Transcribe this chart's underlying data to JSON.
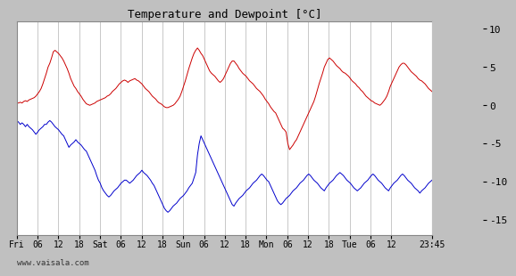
{
  "title": "Temperature and Dewpoint [°C]",
  "ylim": [
    -17,
    11
  ],
  "yticks": [
    -15,
    -10,
    -5,
    0,
    5,
    10
  ],
  "bg_color": "#c0c0c0",
  "plot_bg": "#ffffff",
  "grid_color": "#c8c8c8",
  "temp_color": "#cc0000",
  "dew_color": "#0000cc",
  "x_tick_labels": [
    "Fri",
    "06",
    "12",
    "18",
    "Sat",
    "06",
    "12",
    "18",
    "Sun",
    "06",
    "12",
    "18",
    "Mon",
    "06",
    "12",
    "18",
    "Tue",
    "06",
    "12",
    "23:45"
  ],
  "watermark": "www.vaisala.com",
  "temp_data": [
    0.3,
    0.3,
    0.4,
    0.3,
    0.5,
    0.6,
    0.5,
    0.7,
    0.8,
    0.9,
    1.0,
    1.2,
    1.5,
    1.8,
    2.2,
    2.8,
    3.5,
    4.2,
    5.0,
    5.5,
    6.2,
    7.0,
    7.2,
    7.0,
    6.8,
    6.5,
    6.2,
    5.8,
    5.3,
    4.8,
    4.2,
    3.5,
    3.0,
    2.5,
    2.2,
    1.8,
    1.5,
    1.2,
    0.8,
    0.5,
    0.2,
    0.1,
    0.0,
    0.1,
    0.2,
    0.3,
    0.5,
    0.6,
    0.7,
    0.8,
    0.9,
    1.0,
    1.2,
    1.3,
    1.5,
    1.8,
    2.0,
    2.2,
    2.5,
    2.8,
    3.0,
    3.2,
    3.3,
    3.2,
    3.0,
    3.2,
    3.3,
    3.4,
    3.5,
    3.3,
    3.2,
    3.0,
    2.8,
    2.5,
    2.2,
    2.0,
    1.8,
    1.5,
    1.2,
    1.0,
    0.8,
    0.5,
    0.3,
    0.2,
    0.0,
    -0.2,
    -0.3,
    -0.3,
    -0.2,
    -0.1,
    0.0,
    0.2,
    0.5,
    0.8,
    1.2,
    1.8,
    2.5,
    3.2,
    4.0,
    4.8,
    5.5,
    6.2,
    6.8,
    7.2,
    7.5,
    7.2,
    6.8,
    6.5,
    6.0,
    5.5,
    5.0,
    4.5,
    4.2,
    4.0,
    3.8,
    3.5,
    3.2,
    3.0,
    3.2,
    3.5,
    4.0,
    4.5,
    5.0,
    5.5,
    5.8,
    5.8,
    5.5,
    5.2,
    4.8,
    4.5,
    4.2,
    4.0,
    3.8,
    3.5,
    3.2,
    3.0,
    2.8,
    2.5,
    2.2,
    2.0,
    1.8,
    1.5,
    1.2,
    0.8,
    0.5,
    0.2,
    -0.2,
    -0.5,
    -0.8,
    -1.0,
    -1.5,
    -2.0,
    -2.5,
    -3.0,
    -3.2,
    -3.5,
    -5.0,
    -5.8,
    -5.5,
    -5.2,
    -4.8,
    -4.5,
    -4.0,
    -3.5,
    -3.0,
    -2.5,
    -2.0,
    -1.5,
    -1.0,
    -0.5,
    0.0,
    0.5,
    1.2,
    2.0,
    2.8,
    3.5,
    4.2,
    5.0,
    5.5,
    6.0,
    6.2,
    6.0,
    5.8,
    5.5,
    5.2,
    5.0,
    4.8,
    4.5,
    4.3,
    4.2,
    4.0,
    3.8,
    3.5,
    3.2,
    3.0,
    2.8,
    2.5,
    2.3,
    2.0,
    1.8,
    1.5,
    1.2,
    1.0,
    0.8,
    0.6,
    0.5,
    0.3,
    0.2,
    0.1,
    0.0,
    0.2,
    0.5,
    0.8,
    1.2,
    1.8,
    2.5,
    3.0,
    3.5,
    4.0,
    4.5,
    5.0,
    5.3,
    5.5,
    5.5,
    5.3,
    5.0,
    4.7,
    4.4,
    4.2,
    4.0,
    3.8,
    3.5,
    3.3,
    3.2,
    3.0,
    2.8,
    2.5,
    2.2,
    2.0,
    1.8
  ],
  "dew_data": [
    -2.0,
    -2.2,
    -2.5,
    -2.3,
    -2.5,
    -2.8,
    -2.5,
    -2.8,
    -3.0,
    -3.2,
    -3.5,
    -3.8,
    -3.5,
    -3.2,
    -3.0,
    -2.8,
    -2.5,
    -2.5,
    -2.2,
    -2.0,
    -2.2,
    -2.5,
    -2.8,
    -3.0,
    -3.2,
    -3.5,
    -3.8,
    -4.0,
    -4.5,
    -5.0,
    -5.5,
    -5.2,
    -5.0,
    -4.8,
    -4.5,
    -4.8,
    -5.0,
    -5.2,
    -5.5,
    -5.8,
    -6.0,
    -6.5,
    -7.0,
    -7.5,
    -8.0,
    -8.5,
    -9.2,
    -9.8,
    -10.2,
    -10.8,
    -11.2,
    -11.5,
    -11.8,
    -12.0,
    -11.8,
    -11.5,
    -11.2,
    -11.0,
    -10.8,
    -10.5,
    -10.2,
    -10.0,
    -9.8,
    -9.8,
    -10.0,
    -10.2,
    -10.0,
    -9.8,
    -9.5,
    -9.2,
    -9.0,
    -8.8,
    -8.5,
    -8.8,
    -9.0,
    -9.2,
    -9.5,
    -9.8,
    -10.2,
    -10.5,
    -11.0,
    -11.5,
    -12.0,
    -12.5,
    -13.0,
    -13.5,
    -13.8,
    -14.0,
    -13.8,
    -13.5,
    -13.2,
    -13.0,
    -12.8,
    -12.5,
    -12.2,
    -12.0,
    -11.8,
    -11.5,
    -11.2,
    -10.8,
    -10.5,
    -10.2,
    -9.5,
    -8.8,
    -6.5,
    -5.0,
    -4.0,
    -4.5,
    -5.0,
    -5.5,
    -6.0,
    -6.5,
    -7.0,
    -7.5,
    -8.0,
    -8.5,
    -9.0,
    -9.5,
    -10.0,
    -10.5,
    -11.0,
    -11.5,
    -12.0,
    -12.5,
    -13.0,
    -13.2,
    -12.8,
    -12.5,
    -12.2,
    -12.0,
    -11.8,
    -11.5,
    -11.2,
    -11.0,
    -10.8,
    -10.5,
    -10.2,
    -10.0,
    -9.8,
    -9.5,
    -9.2,
    -9.0,
    -9.2,
    -9.5,
    -9.8,
    -10.0,
    -10.5,
    -11.0,
    -11.5,
    -12.0,
    -12.5,
    -12.8,
    -13.0,
    -12.8,
    -12.5,
    -12.2,
    -12.0,
    -11.8,
    -11.5,
    -11.2,
    -11.0,
    -10.8,
    -10.5,
    -10.2,
    -10.0,
    -9.8,
    -9.5,
    -9.2,
    -9.0,
    -9.2,
    -9.5,
    -9.8,
    -10.0,
    -10.2,
    -10.5,
    -10.8,
    -11.0,
    -11.2,
    -10.8,
    -10.5,
    -10.2,
    -10.0,
    -9.8,
    -9.5,
    -9.2,
    -9.0,
    -8.8,
    -9.0,
    -9.2,
    -9.5,
    -9.8,
    -10.0,
    -10.2,
    -10.5,
    -10.8,
    -11.0,
    -11.2,
    -11.0,
    -10.8,
    -10.5,
    -10.2,
    -10.0,
    -9.8,
    -9.5,
    -9.2,
    -9.0,
    -9.2,
    -9.5,
    -9.8,
    -10.0,
    -10.2,
    -10.5,
    -10.8,
    -11.0,
    -11.2,
    -10.8,
    -10.5,
    -10.2,
    -10.0,
    -9.8,
    -9.5,
    -9.2,
    -9.0,
    -9.2,
    -9.5,
    -9.8,
    -10.0,
    -10.2,
    -10.5,
    -10.8,
    -11.0,
    -11.2,
    -11.5,
    -11.2,
    -11.0,
    -10.8,
    -10.5,
    -10.2,
    -10.0,
    -9.8
  ]
}
